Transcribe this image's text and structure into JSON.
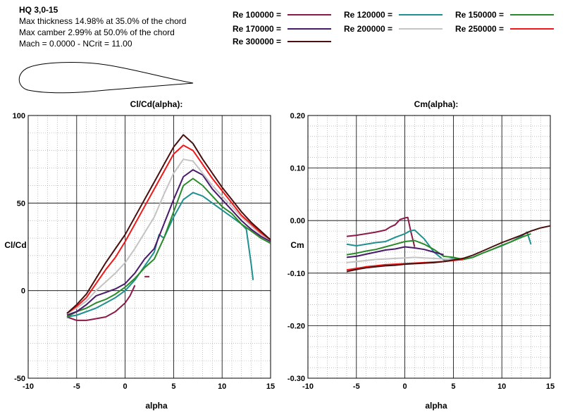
{
  "airfoil": {
    "name": "HQ 3,0-15",
    "thickness_text": "Max thickness 14.98% at 35.0% of the chord",
    "camber_text": "Max camber 2.99% at 50.0% of the chord",
    "mach_text": "Mach = 0.0000 - NCrit = 11.00"
  },
  "colors": {
    "re100000": "#8b1a4a",
    "re120000": "#1f9090",
    "re150000": "#2a8a2a",
    "re170000": "#4a1a6a",
    "re200000": "#c4c4c4",
    "re250000": "#f01818",
    "re300000": "#4a1010"
  },
  "legend": [
    {
      "key": "re100000",
      "label": "Re 100000 ="
    },
    {
      "key": "re120000",
      "label": "Re 120000 ="
    },
    {
      "key": "re150000",
      "label": "Re 150000 ="
    },
    {
      "key": "re170000",
      "label": "Re 170000 ="
    },
    {
      "key": "re200000",
      "label": "Re 200000 ="
    },
    {
      "key": "re250000",
      "label": "Re 250000 ="
    },
    {
      "key": "re300000",
      "label": "Re 300000 ="
    }
  ],
  "chart_data": [
    {
      "type": "line",
      "title": "Cl/Cd(alpha):",
      "xlabel": "alpha",
      "ylabel": "Cl/Cd",
      "xlim": [
        -10,
        15
      ],
      "ylim": [
        -50,
        100
      ],
      "xticks": [
        -10,
        -5,
        0,
        5,
        10,
        15
      ],
      "yticks": [
        -50,
        0,
        50,
        100
      ],
      "ytick_labels": [
        "-50",
        "0",
        "50",
        "100"
      ],
      "grid": true,
      "series": [
        {
          "name": "Re 100000",
          "key": "re100000",
          "x": [
            -6,
            -5,
            -4,
            -3,
            -2,
            -1,
            0,
            0.5,
            1
          ],
          "y": [
            -15,
            -17,
            -17,
            -16,
            -15,
            -12,
            -7,
            -3,
            3
          ]
        },
        {
          "name": "Re 100000 b",
          "key": "re100000",
          "x": [
            2,
            2.5
          ],
          "y": [
            8,
            8
          ]
        },
        {
          "name": "Re 120000",
          "key": "re120000",
          "x": [
            -6,
            -5,
            -4,
            -3,
            -2,
            -1,
            0,
            1,
            2,
            3,
            3.5,
            4,
            4.5,
            5,
            6,
            7,
            8,
            9,
            10,
            11,
            12,
            12.5,
            13,
            13.2
          ],
          "y": [
            -15,
            -14,
            -12,
            -10,
            -7,
            -4,
            0,
            6,
            14,
            22,
            32,
            30,
            36,
            42,
            52,
            56,
            54,
            50,
            46,
            42,
            38,
            35,
            15,
            6
          ]
        },
        {
          "name": "Re 150000",
          "key": "re150000",
          "x": [
            -6,
            -5,
            -4,
            -3,
            -2,
            -1,
            0,
            1,
            2,
            3,
            4,
            5,
            6,
            7,
            8,
            9,
            10,
            11,
            12,
            13,
            14,
            15
          ],
          "y": [
            -15,
            -12,
            -10,
            -7,
            -5,
            -2,
            2,
            7,
            13,
            18,
            30,
            45,
            60,
            64,
            60,
            54,
            48,
            44,
            38,
            34,
            30,
            27
          ]
        },
        {
          "name": "Re 170000",
          "key": "re170000",
          "x": [
            -6,
            -5,
            -4,
            -3,
            -2,
            -1,
            0,
            1,
            2,
            3,
            4,
            5,
            6,
            7,
            8,
            9,
            10,
            11,
            12,
            13,
            14,
            15
          ],
          "y": [
            -14,
            -12,
            -8,
            -3,
            -1,
            1,
            4,
            10,
            18,
            24,
            38,
            52,
            65,
            69,
            66,
            58,
            52,
            46,
            40,
            35,
            31,
            28
          ]
        },
        {
          "name": "Re 200000",
          "key": "re200000",
          "x": [
            -6,
            -5,
            -4,
            -3,
            -2,
            -1,
            0,
            1,
            2,
            3,
            4,
            5,
            6,
            7,
            8,
            9,
            10,
            11,
            12,
            13,
            14,
            15
          ],
          "y": [
            -13,
            -10,
            -6,
            0,
            5,
            10,
            16,
            24,
            33,
            42,
            55,
            67,
            75,
            74,
            67,
            60,
            54,
            48,
            42,
            37,
            32,
            29
          ]
        },
        {
          "name": "Re 250000",
          "key": "re250000",
          "x": [
            -6,
            -5,
            -4,
            -3,
            -2,
            -1,
            0,
            1,
            2,
            3,
            4,
            5,
            6,
            7,
            8,
            9,
            10,
            11,
            12,
            13,
            14,
            15
          ],
          "y": [
            -13,
            -9,
            -4,
            4,
            12,
            19,
            28,
            38,
            48,
            58,
            68,
            78,
            83,
            80,
            72,
            64,
            57,
            50,
            43,
            38,
            33,
            29
          ]
        },
        {
          "name": "Re 300000",
          "key": "re300000",
          "x": [
            -6,
            -5,
            -4,
            -3,
            -2,
            -1,
            0,
            1,
            2,
            3,
            4,
            5,
            6,
            7,
            8,
            9,
            10,
            11,
            12,
            13,
            14,
            15
          ],
          "y": [
            -13,
            -8,
            -2,
            7,
            16,
            24,
            32,
            42,
            52,
            62,
            72,
            82,
            89,
            84,
            75,
            67,
            59,
            52,
            45,
            39,
            34,
            29
          ]
        }
      ]
    },
    {
      "type": "line",
      "title": "Cm(alpha):",
      "xlabel": "alpha",
      "ylabel": "Cm",
      "xlim": [
        -10,
        15
      ],
      "ylim": [
        -0.3,
        0.2
      ],
      "xticks": [
        -10,
        -5,
        0,
        5,
        10,
        15
      ],
      "yticks": [
        -0.3,
        -0.2,
        -0.1,
        0.0,
        0.1,
        0.2
      ],
      "ytick_labels": [
        "-0.30",
        "-0.20",
        "-0.10",
        "0.00",
        "0.10",
        "0.20"
      ],
      "grid": true,
      "series": [
        {
          "name": "Re 100000",
          "key": "re100000",
          "x": [
            -6,
            -5,
            -4,
            -3,
            -2,
            -1.5,
            -1,
            -0.5,
            0,
            0.3,
            0.6,
            1
          ],
          "y": [
            -0.03,
            -0.028,
            -0.025,
            -0.022,
            -0.018,
            -0.012,
            -0.008,
            0.002,
            0.005,
            0.006,
            -0.02,
            -0.05
          ]
        },
        {
          "name": "Re 120000",
          "key": "re120000",
          "x": [
            -6,
            -5,
            -4,
            -3,
            -2,
            -1,
            0,
            0.5,
            1,
            2,
            3,
            4,
            5,
            6,
            7,
            8,
            9,
            10,
            11,
            12,
            12.6,
            13
          ],
          "y": [
            -0.045,
            -0.048,
            -0.045,
            -0.042,
            -0.04,
            -0.032,
            -0.025,
            -0.02,
            -0.018,
            -0.035,
            -0.06,
            -0.075,
            -0.072,
            -0.074,
            -0.07,
            -0.062,
            -0.055,
            -0.048,
            -0.04,
            -0.03,
            -0.022,
            -0.045
          ]
        },
        {
          "name": "Re 150000",
          "key": "re150000",
          "x": [
            -6,
            -5,
            -4,
            -3,
            -2,
            -1,
            0,
            1,
            2,
            3,
            4,
            5,
            6,
            7,
            8,
            9,
            10,
            11,
            12,
            13
          ],
          "y": [
            -0.065,
            -0.062,
            -0.058,
            -0.055,
            -0.05,
            -0.045,
            -0.04,
            -0.038,
            -0.045,
            -0.055,
            -0.068,
            -0.07,
            -0.074,
            -0.07,
            -0.062,
            -0.055,
            -0.047,
            -0.04,
            -0.032,
            -0.025
          ]
        },
        {
          "name": "Re 170000",
          "key": "re170000",
          "x": [
            -6,
            -5,
            -4,
            -3,
            -2,
            -1,
            0,
            1,
            2,
            3,
            4
          ],
          "y": [
            -0.07,
            -0.068,
            -0.064,
            -0.06,
            -0.056,
            -0.054,
            -0.05,
            -0.052,
            -0.055,
            -0.06,
            -0.065
          ]
        },
        {
          "name": "Re 200000",
          "key": "re200000",
          "x": [
            -6,
            -5,
            -4,
            -3,
            -2,
            -1,
            0,
            1,
            2,
            3,
            4,
            5,
            6
          ],
          "y": [
            -0.08,
            -0.078,
            -0.076,
            -0.074,
            -0.073,
            -0.072,
            -0.071,
            -0.07,
            -0.071,
            -0.072,
            -0.073,
            -0.074,
            -0.075
          ]
        },
        {
          "name": "Re 250000",
          "key": "re250000",
          "x": [
            -6,
            -5,
            -4,
            -3,
            -2,
            -1,
            0,
            1,
            2,
            3,
            4,
            5,
            6
          ],
          "y": [
            -0.094,
            -0.091,
            -0.088,
            -0.086,
            -0.084,
            -0.083,
            -0.082,
            -0.081,
            -0.08,
            -0.079,
            -0.078,
            -0.076,
            -0.074
          ]
        },
        {
          "name": "Re 300000",
          "key": "re300000",
          "x": [
            -6,
            -5,
            -4,
            -3,
            -2,
            -1,
            0,
            1,
            2,
            3,
            4,
            5,
            6,
            7,
            8,
            9,
            10,
            11,
            12,
            13,
            14,
            15
          ],
          "y": [
            -0.097,
            -0.093,
            -0.09,
            -0.088,
            -0.086,
            -0.085,
            -0.083,
            -0.082,
            -0.081,
            -0.08,
            -0.078,
            -0.075,
            -0.072,
            -0.066,
            -0.058,
            -0.05,
            -0.042,
            -0.035,
            -0.028,
            -0.02,
            -0.014,
            -0.01
          ]
        }
      ]
    }
  ]
}
